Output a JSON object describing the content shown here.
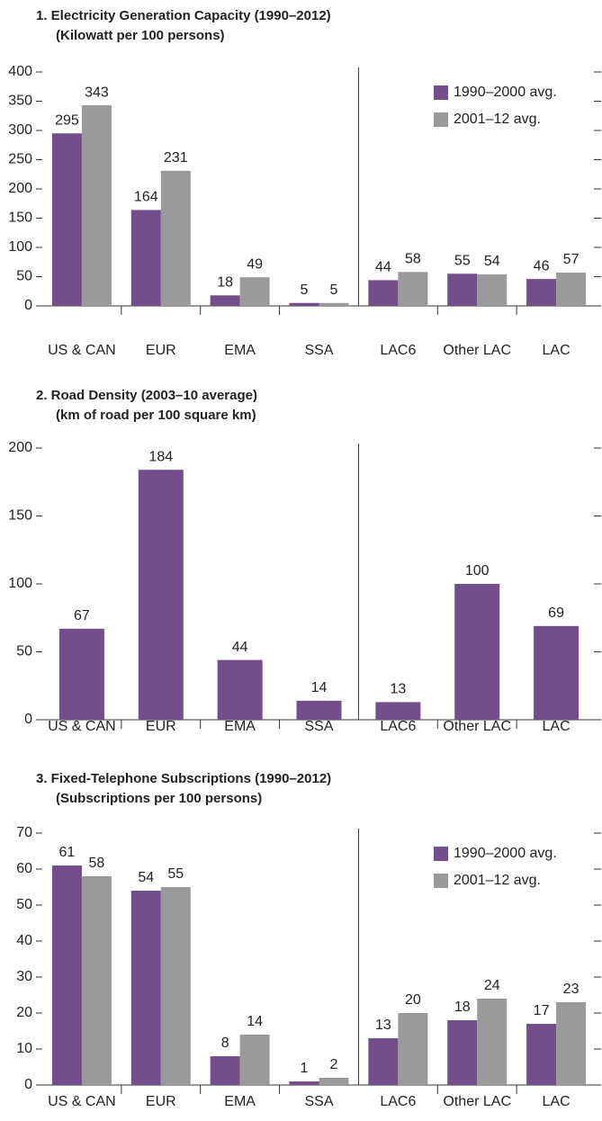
{
  "chart_data": [
    {
      "type": "bar",
      "title": "1. Electricity Generation Capacity (1990–2012)",
      "subtitle": "(Kilowatt per 100 persons)",
      "categories": [
        "US & CAN",
        "EUR",
        "EMA",
        "SSA",
        "LAC6",
        "Other LAC",
        "LAC"
      ],
      "series": [
        {
          "name": "1990–2000 avg.",
          "color": "#744d8b",
          "values": [
            295,
            164,
            18,
            5,
            44,
            55,
            46
          ]
        },
        {
          "name": "2001–12 avg.",
          "color": "#9a9a9a",
          "values": [
            343,
            231,
            49,
            5,
            58,
            54,
            57
          ]
        }
      ],
      "ylim": [
        0,
        400
      ],
      "yticks": [
        0,
        50,
        100,
        150,
        200,
        250,
        300,
        350,
        400
      ],
      "legend": "upper right"
    },
    {
      "type": "bar",
      "title": "2. Road Density (2003–10 average)",
      "subtitle": "(km of road per 100 square km)",
      "categories": [
        "US & CAN",
        "EUR",
        "EMA",
        "SSA",
        "LAC6",
        "Other LAC",
        "LAC"
      ],
      "values": [
        67,
        184,
        44,
        14,
        13,
        100,
        69
      ],
      "color": "#744d8b",
      "ylim": [
        0,
        200
      ],
      "yticks": [
        0,
        50,
        100,
        150,
        200
      ]
    },
    {
      "type": "bar",
      "title": "3. Fixed-Telephone Subscriptions (1990–2012)",
      "subtitle": "(Subscriptions per 100 persons)",
      "categories": [
        "US & CAN",
        "EUR",
        "EMA",
        "SSA",
        "LAC6",
        "Other LAC",
        "LAC"
      ],
      "series": [
        {
          "name": "1990–2000 avg.",
          "color": "#744d8b",
          "values": [
            61,
            54,
            8,
            1,
            13,
            18,
            17
          ]
        },
        {
          "name": "2001–12 avg.",
          "color": "#9a9a9a",
          "values": [
            58,
            55,
            14,
            2,
            20,
            24,
            23
          ]
        }
      ],
      "ylim": [
        0,
        70
      ],
      "yticks": [
        0,
        10,
        20,
        30,
        40,
        50,
        60,
        70
      ],
      "legend": "upper right"
    }
  ]
}
